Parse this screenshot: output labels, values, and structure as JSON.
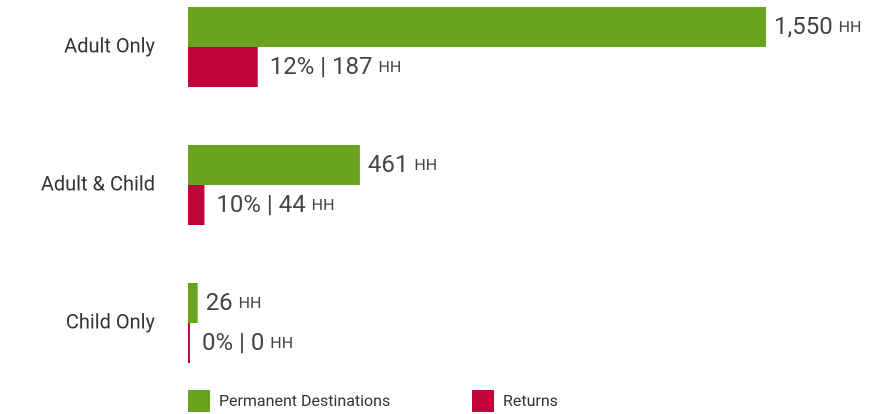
{
  "chart_data": {
    "type": "hbar",
    "categories": [
      "Adult Only",
      "Adult & Child",
      "Child Only"
    ],
    "series": [
      {
        "name": "Permanent Destinations",
        "color": "#6aa41f",
        "values": [
          1550,
          461,
          26
        ],
        "value_labels": [
          "1,550 HH",
          "461 HH",
          "26 HH"
        ]
      },
      {
        "name": "Returns",
        "color": "#c1053a",
        "values": [
          187,
          44,
          0
        ],
        "value_labels": [
          "12% | 187 HH",
          "10% | 44 HH",
          "0% | 0 HH"
        ]
      }
    ],
    "legend": "bottom"
  }
}
